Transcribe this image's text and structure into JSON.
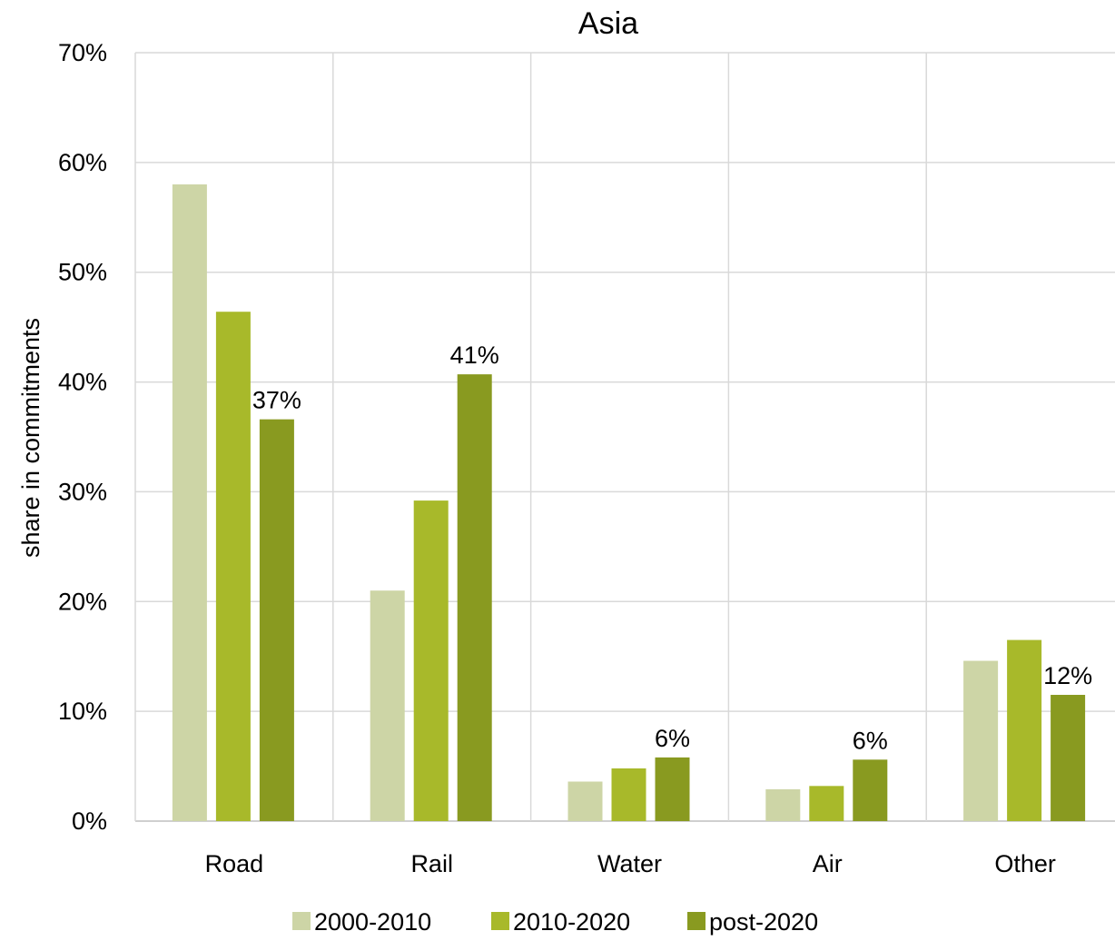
{
  "chart_data": {
    "type": "bar",
    "title": "Asia",
    "xlabel": "",
    "ylabel": "share in commitments",
    "ylim": [
      0,
      70
    ],
    "y_ticks": [
      "0%",
      "10%",
      "20%",
      "30%",
      "40%",
      "50%",
      "60%",
      "70%"
    ],
    "categories": [
      "Road",
      "Rail",
      "Water",
      "Air",
      "Other"
    ],
    "series": [
      {
        "name": "2000-2010",
        "color": "#cdd5a6",
        "values": [
          58,
          21,
          3.6,
          2.9,
          14.6
        ],
        "labels": [
          "",
          "",
          "",
          "",
          ""
        ]
      },
      {
        "name": "2010-2020",
        "color": "#a8b92a",
        "values": [
          46.4,
          29.2,
          4.8,
          3.2,
          16.5
        ],
        "labels": [
          "",
          "",
          "",
          "",
          ""
        ]
      },
      {
        "name": "post-2020",
        "color": "#899a20",
        "values": [
          36.6,
          40.7,
          5.8,
          5.6,
          11.5
        ],
        "labels": [
          "37%",
          "41%",
          "6%",
          "6%",
          "12%"
        ]
      }
    ],
    "grid": {
      "horizontal": true,
      "vertical": true
    },
    "legend_position": "bottom"
  }
}
